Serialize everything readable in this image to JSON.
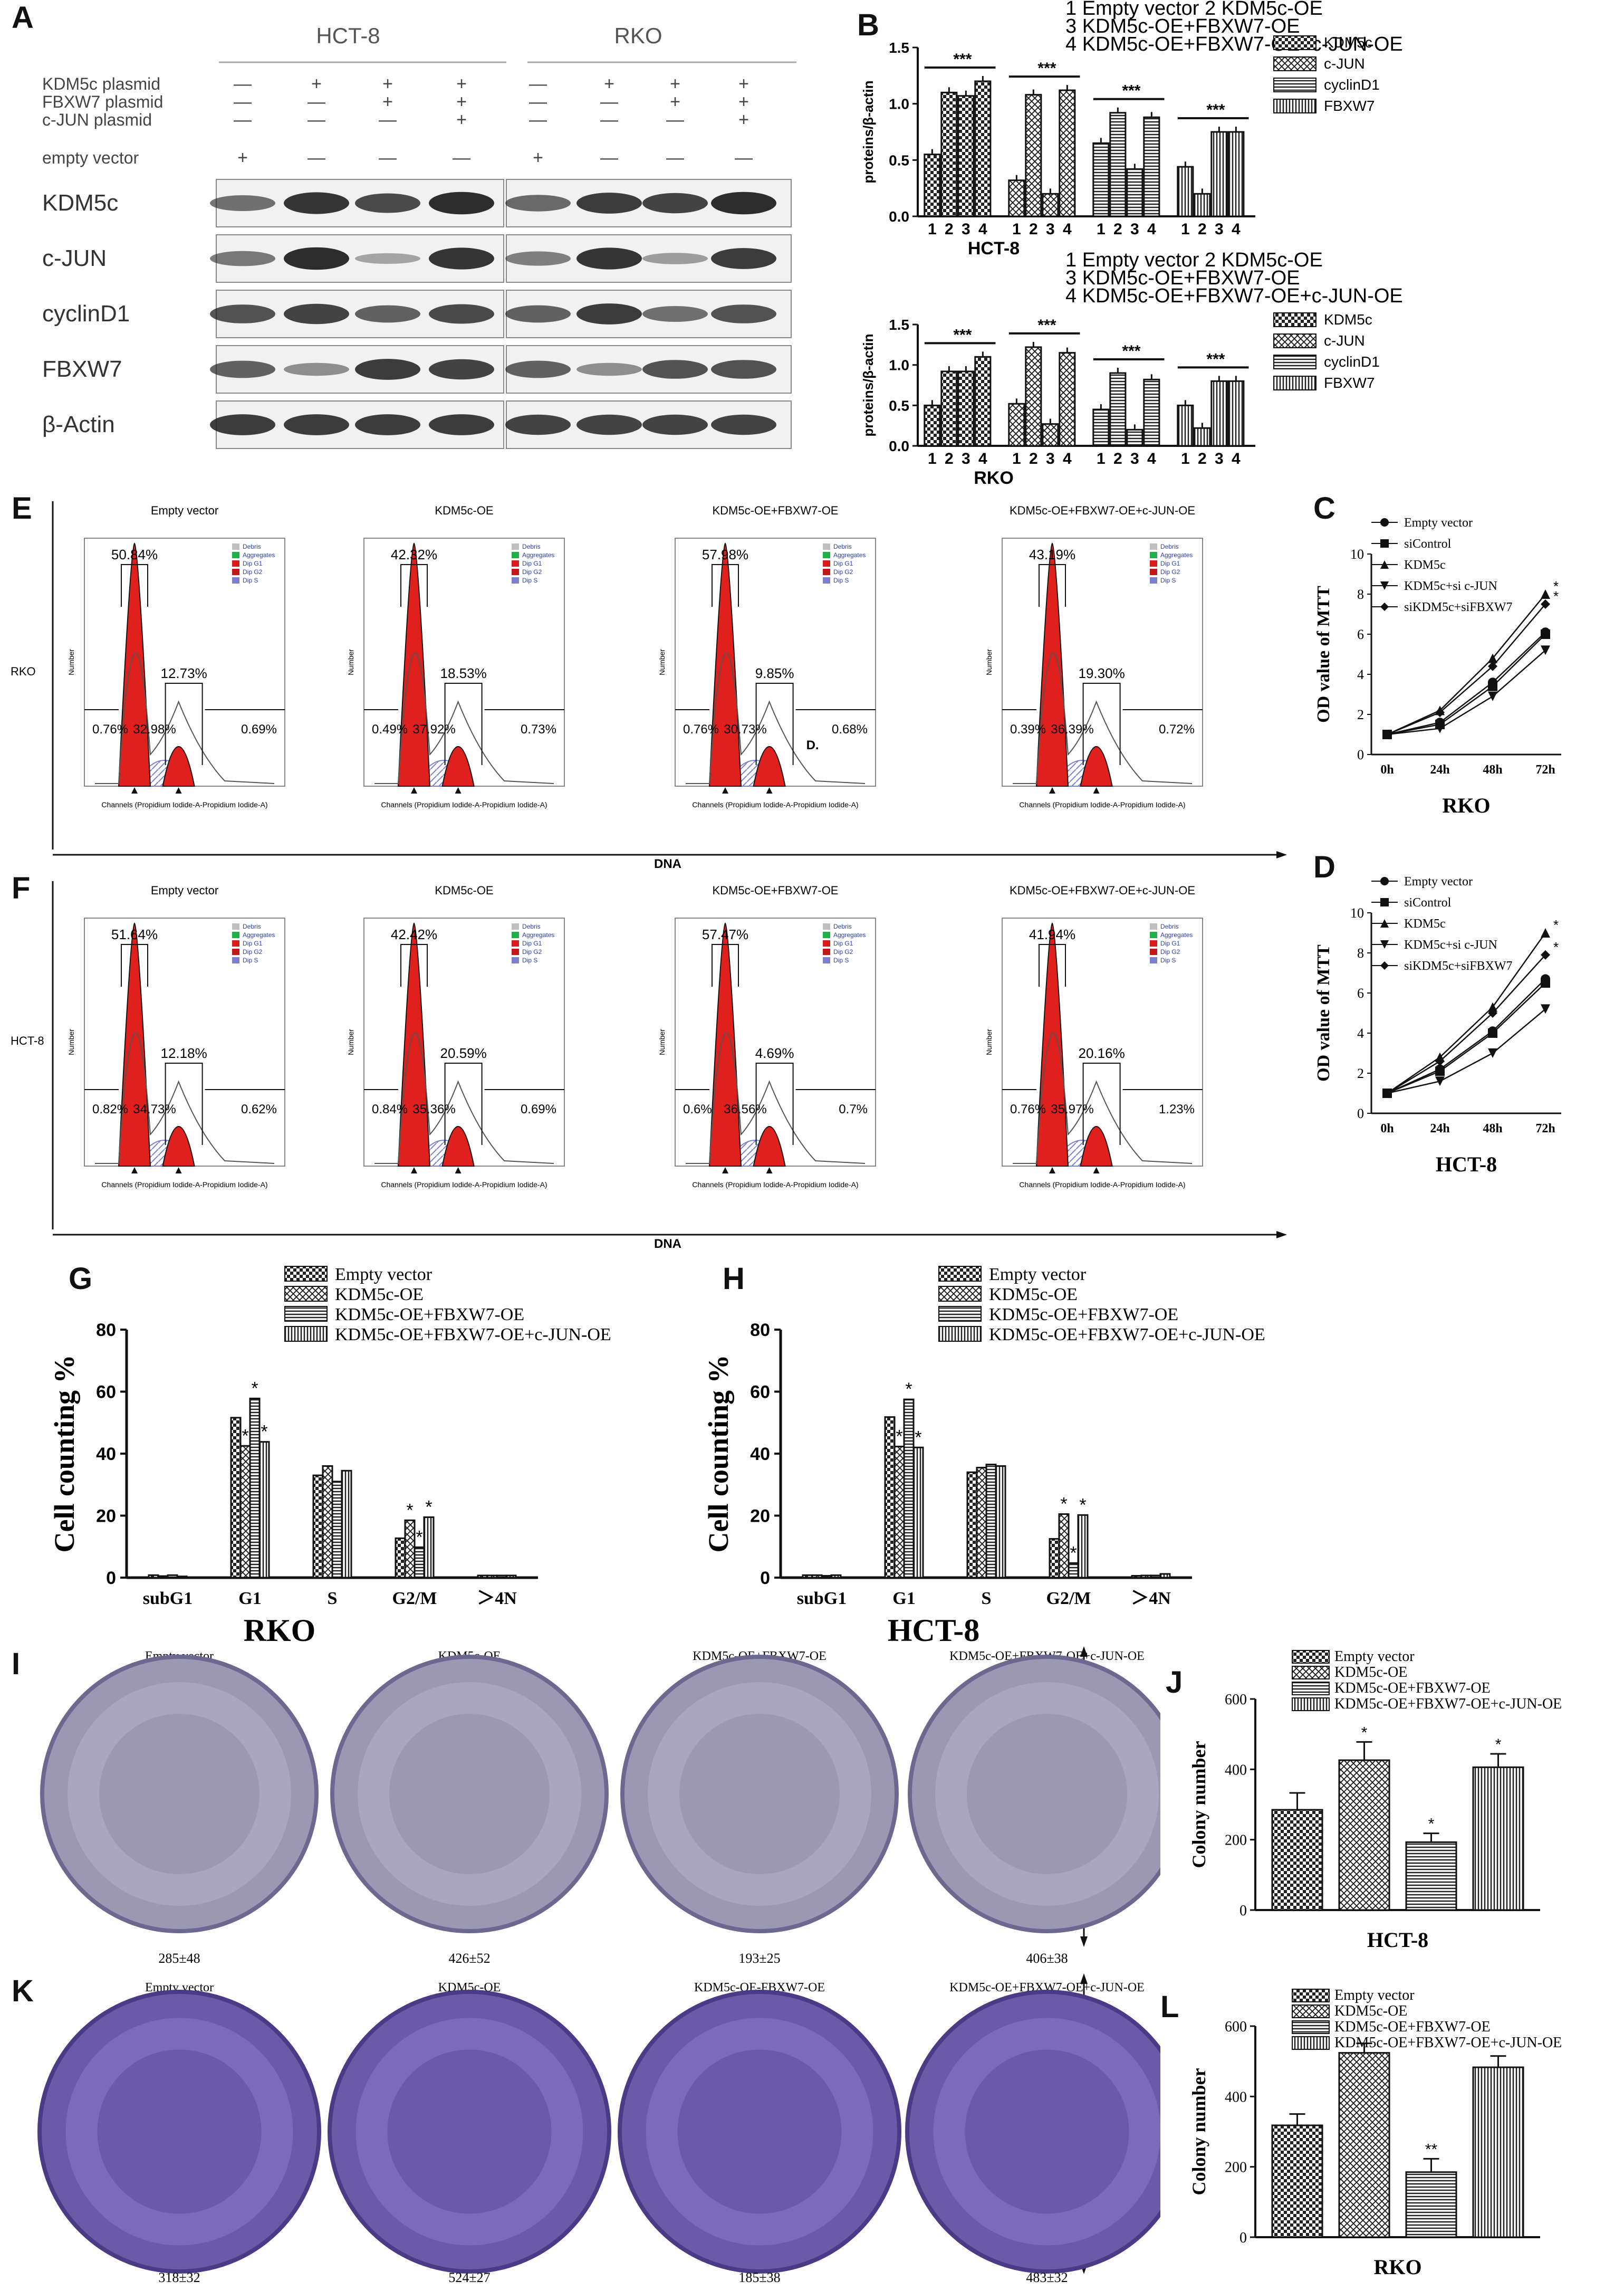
{
  "labels": {
    "A": "A",
    "B": "B",
    "C": "C",
    "D": "D",
    "E": "E",
    "F": "F",
    "G": "G",
    "H": "H",
    "I": "I",
    "J": "J",
    "K": "K",
    "L": "L"
  },
  "panelA": {
    "cell_lines": [
      "HCT-8",
      "RKO"
    ],
    "row_labels": [
      "KDM5c plasmid",
      "FBXW7 plasmid",
      "c-JUN  plasmid",
      "empty vector"
    ],
    "signs": [
      [
        "—",
        "+",
        "+",
        "+",
        "—",
        "+",
        "+",
        "+"
      ],
      [
        "—",
        "—",
        "+",
        "+",
        "—",
        "—",
        "+",
        "+"
      ],
      [
        "—",
        "—",
        "—",
        "+",
        "—",
        "—",
        "—",
        "+"
      ],
      [
        "+",
        "—",
        "—",
        "—",
        "+",
        "—",
        "—",
        "—"
      ]
    ],
    "proteins": [
      "KDM5c",
      "c-JUN",
      "cyclinD1",
      "FBXW7",
      "β-Actin"
    ]
  },
  "panelB": {
    "legend_header": [
      "1 Empty vector     2 KDM5c-OE",
      "3 KDM5c-OE+FBXW7-OE",
      "4 KDM5c-OE+FBXW7-OE+c-JUN-OE"
    ],
    "ylabel": "proteins/β-actin",
    "series": [
      "KDM5c",
      "c-JUN",
      "cyclinD1",
      "FBXW7"
    ],
    "group_ticks": [
      "1",
      "2",
      "3",
      "4"
    ],
    "sig": "***",
    "hct8": {
      "title": "HCT-8",
      "ymax": 1.5,
      "yticks": [
        "0.0",
        "0.5",
        "1.0",
        "1.5"
      ],
      "groups": [
        {
          "name": "KDM5c",
          "values": [
            0.55,
            1.1,
            1.07,
            1.2
          ]
        },
        {
          "name": "c-JUN",
          "values": [
            0.32,
            1.08,
            0.2,
            1.12
          ]
        },
        {
          "name": "cyclinD1",
          "values": [
            0.65,
            0.92,
            0.42,
            0.88
          ]
        },
        {
          "name": "FBXW7",
          "values": [
            0.44,
            0.2,
            0.75,
            0.75
          ]
        }
      ]
    },
    "rko": {
      "title": "RKO",
      "ymax": 1.5,
      "yticks": [
        "0.0",
        "0.5",
        "1.0",
        "1.5"
      ],
      "groups": [
        {
          "name": "KDM5c",
          "values": [
            0.5,
            0.92,
            0.92,
            1.1
          ]
        },
        {
          "name": "c-JUN",
          "values": [
            0.52,
            1.22,
            0.27,
            1.15
          ]
        },
        {
          "name": "cyclinD1",
          "values": [
            0.45,
            0.9,
            0.2,
            0.82
          ]
        },
        {
          "name": "FBXW7",
          "values": [
            0.5,
            0.22,
            0.8,
            0.8
          ]
        }
      ]
    }
  },
  "panelE": {
    "row_label": "RKO",
    "xlabel": "DNA",
    "axis_x": "Channels (Propidium Iodide-A-Propidium Iodide-A)",
    "axis_y": "Number",
    "legend": [
      "Debris",
      "Aggregates",
      "Dip G1",
      "Dip G2",
      "Dip S"
    ],
    "plots": [
      {
        "title": "Empty vector",
        "g1": "50.84%",
        "g2": "12.73%",
        "s": "32.98%",
        "left": "0.76%",
        "right": "0.69%",
        "extra": ""
      },
      {
        "title": "KDM5c-OE",
        "g1": "42.32%",
        "g2": "18.53%",
        "s": "37.92%",
        "left": "0.49%",
        "right": "0.73%",
        "extra": ""
      },
      {
        "title": "KDM5c-OE+FBXW7-OE",
        "g1": "57.98%",
        "g2": "9.85%",
        "s": "30.73%",
        "left": "0.76%",
        "right": "0.68%",
        "extra": "D."
      },
      {
        "title": "KDM5c-OE+FBXW7-OE+c-JUN-OE",
        "g1": "43.19%",
        "g2": "19.30%",
        "s": "36.39%",
        "left": "0.39%",
        "right": "0.72%",
        "extra": ""
      }
    ]
  },
  "panelF": {
    "row_label": "HCT-8",
    "xlabel": "DNA",
    "plots": [
      {
        "title": "Empty vector",
        "g1": "51.64%",
        "g2": "12.18%",
        "s": "34.73%",
        "left": "0.82%",
        "right": "0.62%",
        "extra": ""
      },
      {
        "title": "KDM5c-OE",
        "g1": "42.42%",
        "g2": "20.59%",
        "s": "35.36%",
        "left": "0.84%",
        "right": "0.69%",
        "extra": ""
      },
      {
        "title": "KDM5c-OE+FBXW7-OE",
        "g1": "57.47%",
        "g2": "4.69%",
        "s": "36.56%",
        "left": "0.6%",
        "right": "0.7%",
        "extra": ""
      },
      {
        "title": "KDM5c-OE+FBXW7-OE+c-JUN-OE",
        "g1": "41.94%",
        "g2": "20.16%",
        "s": "35.97%",
        "left": "0.76%",
        "right": "1.23%",
        "extra": ""
      }
    ]
  },
  "panelC": {
    "title": "RKO",
    "ylabel": "OD value of MTT",
    "xticks": [
      "0h",
      "24h",
      "48h",
      "72h"
    ],
    "yticks": [
      "0",
      "2",
      "4",
      "6",
      "8",
      "10"
    ],
    "ymax": 10,
    "series": [
      {
        "name": "Empty vector",
        "values": [
          1.0,
          1.6,
          3.6,
          6.1
        ]
      },
      {
        "name": "siControl",
        "values": [
          1.0,
          1.5,
          3.4,
          6.0
        ]
      },
      {
        "name": "KDM5c",
        "values": [
          1.0,
          2.2,
          4.8,
          8.0
        ]
      },
      {
        "name": "KDM5c+si c-JUN",
        "values": [
          1.0,
          1.3,
          2.9,
          5.2
        ]
      },
      {
        "name": "siKDM5c+siFBXW7",
        "values": [
          1.0,
          2.1,
          4.4,
          7.5
        ]
      }
    ]
  },
  "panelD": {
    "title": "HCT-8",
    "ylabel": "OD value of MTT",
    "xticks": [
      "0h",
      "24h",
      "48h",
      "72h"
    ],
    "yticks": [
      "0",
      "2",
      "4",
      "6",
      "8",
      "10"
    ],
    "ymax": 10,
    "series": [
      {
        "name": "Empty vector",
        "values": [
          1.0,
          2.2,
          4.1,
          6.7
        ]
      },
      {
        "name": "siControl",
        "values": [
          1.0,
          2.1,
          4.0,
          6.5
        ]
      },
      {
        "name": "KDM5c",
        "values": [
          1.0,
          2.8,
          5.3,
          9.0
        ]
      },
      {
        "name": "KDM5c+si c-JUN",
        "values": [
          1.0,
          1.6,
          3.0,
          5.2
        ]
      },
      {
        "name": "siKDM5c+siFBXW7",
        "values": [
          1.0,
          2.6,
          5.0,
          7.9
        ]
      }
    ]
  },
  "panelG": {
    "title": "RKO",
    "ylabel": "Cell counting %",
    "categories": [
      "subG1",
      "G1",
      "S",
      "G2/M",
      "＞4N"
    ],
    "yticks": [
      "0",
      "20",
      "40",
      "60",
      "80"
    ],
    "ymax": 80,
    "series": [
      {
        "name": "Empty vector",
        "values": [
          0.8,
          51.6,
          33.0,
          12.7,
          0.7
        ]
      },
      {
        "name": "KDM5c-OE",
        "values": [
          0.5,
          42.5,
          36.0,
          18.5,
          0.7
        ]
      },
      {
        "name": "KDM5c-OE+FBXW7-OE",
        "values": [
          0.8,
          57.8,
          31.0,
          9.8,
          0.7
        ]
      },
      {
        "name": "KDM5c-OE+FBXW7-OE+c-JUN-OE",
        "values": [
          0.4,
          43.8,
          34.5,
          19.5,
          0.7
        ]
      }
    ]
  },
  "panelH": {
    "title": "HCT-8",
    "ylabel": "Cell counting %",
    "categories": [
      "subG1",
      "G1",
      "S",
      "G2/M",
      "＞4N"
    ],
    "yticks": [
      "0",
      "20",
      "40",
      "60",
      "80"
    ],
    "ymax": 80,
    "series": [
      {
        "name": "Empty vector",
        "values": [
          0.8,
          51.8,
          34.0,
          12.5,
          0.6
        ]
      },
      {
        "name": "KDM5c-OE",
        "values": [
          0.8,
          42.3,
          35.5,
          20.5,
          0.7
        ]
      },
      {
        "name": "KDM5c-OE+FBXW7-OE",
        "values": [
          0.6,
          57.5,
          36.5,
          4.7,
          0.7
        ]
      },
      {
        "name": "KDM5c-OE+FBXW7-OE+c-JUN-OE",
        "values": [
          0.8,
          42.0,
          36.0,
          20.2,
          1.2
        ]
      }
    ]
  },
  "panelI": {
    "row_label": "HCT-8",
    "plates": [
      {
        "title": "Empty vector",
        "count": "285±48"
      },
      {
        "title": "KDM5c-OE",
        "count": "426±52"
      },
      {
        "title": "KDM5c-OE+FBXW7-OE",
        "count": "193±25"
      },
      {
        "title": "KDM5c-OE+FBXW7-OE+c-JUN-OE",
        "count": "406±38"
      }
    ]
  },
  "panelK": {
    "row_label": "RKO",
    "plates": [
      {
        "title": "Empty vector",
        "count": "318±32"
      },
      {
        "title": "KDM5c-OE",
        "count": "524±27"
      },
      {
        "title": "KDM5c-OE-FBXW7-OE",
        "count": "185±38"
      },
      {
        "title": "KDM5c-OE+FBXW7-OE+c-JUN-OE",
        "count": "483±32"
      }
    ]
  },
  "panelJ": {
    "title": "HCT-8",
    "ylabel": "Colony number",
    "yticks": [
      "0",
      "200",
      "400",
      "600"
    ],
    "ymax": 600,
    "series": [
      "Empty vector",
      "KDM5c-OE",
      "KDM5c-OE+FBXW7-OE",
      "KDM5c-OE+FBXW7-OE+c-JUN-OE"
    ],
    "values": [
      285,
      426,
      193,
      406
    ],
    "errors": [
      48,
      52,
      25,
      38
    ],
    "sig": [
      "",
      "*",
      "*",
      "*"
    ]
  },
  "panelL": {
    "title": "RKO",
    "ylabel": "Colony number",
    "yticks": [
      "0",
      "200",
      "400",
      "600"
    ],
    "ymax": 600,
    "series": [
      "Empty vector",
      "KDM5c-OE",
      "KDM5c-OE+FBXW7-OE",
      "KDM5c-OE+FBXW7-OE+c-JUN-OE"
    ],
    "values": [
      318,
      524,
      185,
      483
    ],
    "errors": [
      32,
      27,
      38,
      32
    ],
    "sig": [
      "",
      "",
      "**",
      ""
    ]
  },
  "chart_data": [
    {
      "type": "bar",
      "title": "HCT-8",
      "ylabel": "proteins/β-actin",
      "categories": [
        "KDM5c",
        "c-JUN",
        "cyclinD1",
        "FBXW7"
      ],
      "series": [
        {
          "name": "1",
          "values": [
            0.55,
            0.32,
            0.65,
            0.44
          ]
        },
        {
          "name": "2",
          "values": [
            1.1,
            1.08,
            0.92,
            0.2
          ]
        },
        {
          "name": "3",
          "values": [
            1.07,
            0.2,
            0.42,
            0.75
          ]
        },
        {
          "name": "4",
          "values": [
            1.2,
            1.12,
            0.88,
            0.75
          ]
        }
      ],
      "ylim": [
        0,
        1.5
      ]
    },
    {
      "type": "bar",
      "title": "RKO",
      "ylabel": "proteins/β-actin",
      "categories": [
        "KDM5c",
        "c-JUN",
        "cyclinD1",
        "FBXW7"
      ],
      "series": [
        {
          "name": "1",
          "values": [
            0.5,
            0.52,
            0.45,
            0.5
          ]
        },
        {
          "name": "2",
          "values": [
            0.92,
            1.22,
            0.9,
            0.22
          ]
        },
        {
          "name": "3",
          "values": [
            0.92,
            0.27,
            0.2,
            0.8
          ]
        },
        {
          "name": "4",
          "values": [
            1.1,
            1.15,
            0.82,
            0.8
          ]
        }
      ],
      "ylim": [
        0,
        1.5
      ]
    },
    {
      "type": "line",
      "title": "RKO",
      "ylabel": "OD value of MTT",
      "x": [
        "0h",
        "24h",
        "48h",
        "72h"
      ],
      "ylim": [
        0,
        10
      ]
    },
    {
      "type": "line",
      "title": "HCT-8",
      "ylabel": "OD value of MTT",
      "x": [
        "0h",
        "24h",
        "48h",
        "72h"
      ],
      "ylim": [
        0,
        10
      ]
    },
    {
      "type": "bar",
      "title": "RKO",
      "ylabel": "Cell counting %",
      "categories": [
        "subG1",
        "G1",
        "S",
        "G2/M",
        "＞4N"
      ],
      "ylim": [
        0,
        80
      ]
    },
    {
      "type": "bar",
      "title": "HCT-8",
      "ylabel": "Cell counting %",
      "categories": [
        "subG1",
        "G1",
        "S",
        "G2/M",
        "＞4N"
      ],
      "ylim": [
        0,
        80
      ]
    },
    {
      "type": "bar",
      "title": "HCT-8",
      "ylabel": "Colony number",
      "categories": [
        "Empty vector",
        "KDM5c-OE",
        "KDM5c-OE+FBXW7-OE",
        "KDM5c-OE+FBXW7-OE+c-JUN-OE"
      ],
      "values": [
        285,
        426,
        193,
        406
      ],
      "ylim": [
        0,
        600
      ]
    },
    {
      "type": "bar",
      "title": "RKO",
      "ylabel": "Colony number",
      "categories": [
        "Empty vector",
        "KDM5c-OE",
        "KDM5c-OE+FBXW7-OE",
        "KDM5c-OE+FBXW7-OE+c-JUN-OE"
      ],
      "values": [
        318,
        524,
        185,
        483
      ],
      "ylim": [
        0,
        600
      ]
    }
  ],
  "colors": {
    "ink": "#111111",
    "red": "#e0201c",
    "hatch": "#7b7fd0",
    "plate": "#6a5aa8",
    "plateDark": "#4b3a86",
    "grey": "#bfbfbf"
  }
}
